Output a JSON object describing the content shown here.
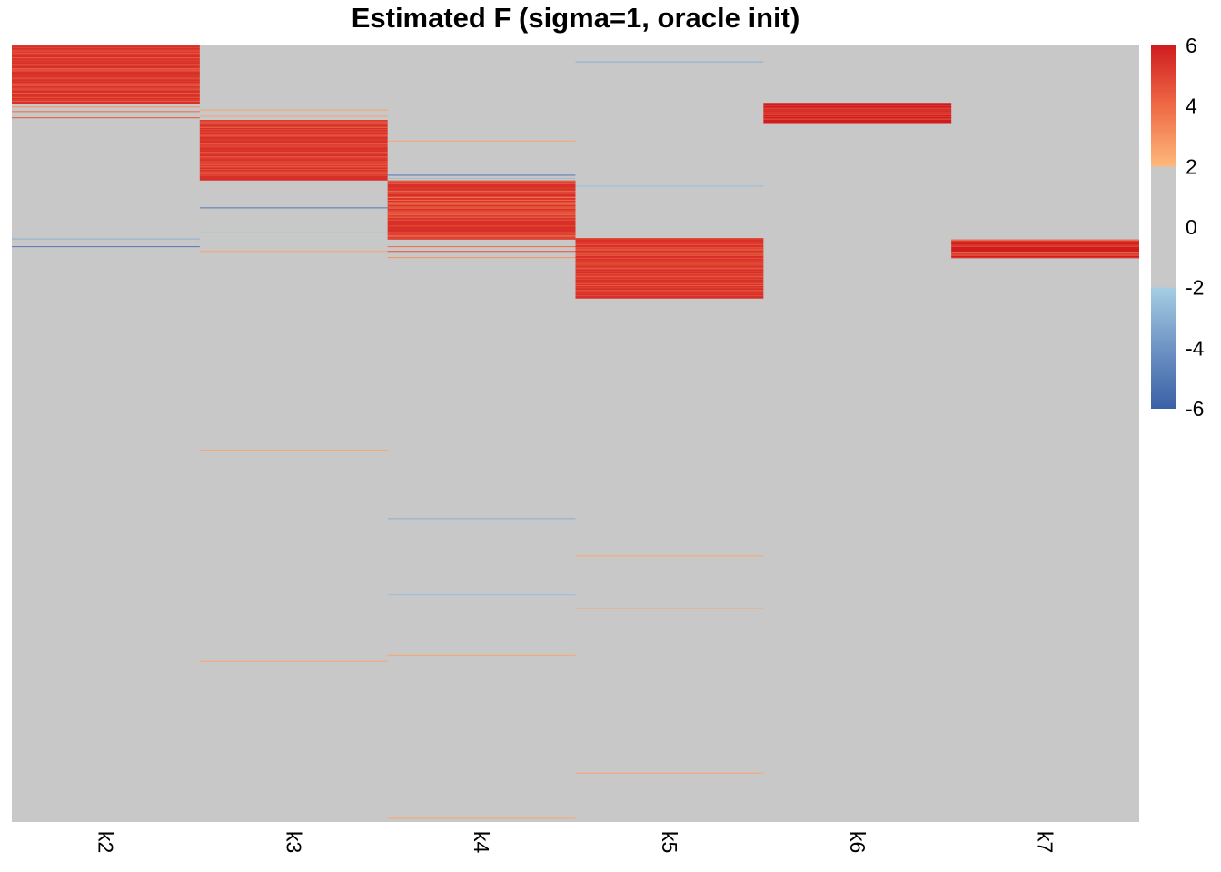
{
  "chart_data": {
    "type": "heatmap",
    "title": "Estimated F (sigma=1, oracle init)",
    "xlabel": "",
    "ylabel": "",
    "columns": [
      "k2",
      "k3",
      "k4",
      "k5",
      "k6",
      "k7"
    ],
    "n_rows": 500,
    "background_value": 0,
    "background_color": "#c8c8c8",
    "color_scale": {
      "min": -6,
      "max": 6,
      "ticks": [
        6,
        4,
        2,
        0,
        -2,
        -4,
        -6
      ],
      "stops": [
        {
          "value": -6,
          "color": "#3a61a6"
        },
        {
          "value": -4,
          "color": "#6e93c4"
        },
        {
          "value": -2,
          "color": "#a6cee3"
        },
        {
          "value": 2,
          "color": "#fdb97b"
        },
        {
          "value": 4,
          "color": "#ef6a46"
        },
        {
          "value": 6,
          "color": "#d01c1f"
        }
      ],
      "neutral_range": [
        -2,
        2
      ]
    },
    "blocks": [
      {
        "column": "k2",
        "rows": [
          1,
          38
        ],
        "value": 5.5
      },
      {
        "column": "k3",
        "rows": [
          49,
          87
        ],
        "value": 5.5
      },
      {
        "column": "k4",
        "rows": [
          88,
          125
        ],
        "value": 5.5
      },
      {
        "column": "k5",
        "rows": [
          125,
          163
        ],
        "value": 5.5
      },
      {
        "column": "k6",
        "rows": [
          38,
          50
        ],
        "value": 6
      },
      {
        "column": "k7",
        "rows": [
          126,
          137
        ],
        "value": 6
      }
    ],
    "isolated_cells": [
      {
        "column": "k2",
        "row": 40,
        "value": 3
      },
      {
        "column": "k2",
        "row": 43,
        "value": 4
      },
      {
        "column": "k2",
        "row": 47,
        "value": 4.5
      },
      {
        "column": "k2",
        "row": 125,
        "value": -3
      },
      {
        "column": "k2",
        "row": 130,
        "value": -5
      },
      {
        "column": "k3",
        "row": 42,
        "value": 2.5
      },
      {
        "column": "k3",
        "row": 46,
        "value": 2.5
      },
      {
        "column": "k3",
        "row": 105,
        "value": -5
      },
      {
        "column": "k3",
        "row": 121,
        "value": -2.5
      },
      {
        "column": "k3",
        "row": 133,
        "value": 2.5
      },
      {
        "column": "k3",
        "row": 261,
        "value": 2.5
      },
      {
        "column": "k3",
        "row": 397,
        "value": 2.5
      },
      {
        "column": "k4",
        "row": 62,
        "value": 2.5
      },
      {
        "column": "k4",
        "row": 84,
        "value": -5
      },
      {
        "column": "k4",
        "row": 86,
        "value": -2.5
      },
      {
        "column": "k4",
        "row": 130,
        "value": 4
      },
      {
        "column": "k4",
        "row": 133,
        "value": 4.5
      },
      {
        "column": "k4",
        "row": 137,
        "value": 3
      },
      {
        "column": "k4",
        "row": 305,
        "value": -3
      },
      {
        "column": "k4",
        "row": 354,
        "value": -2.5
      },
      {
        "column": "k4",
        "row": 393,
        "value": 2.5
      },
      {
        "column": "k4",
        "row": 498,
        "value": 2.5
      },
      {
        "column": "k5",
        "row": 11,
        "value": -3
      },
      {
        "column": "k5",
        "row": 91,
        "value": -2.5
      },
      {
        "column": "k5",
        "row": 329,
        "value": 2.5
      },
      {
        "column": "k5",
        "row": 363,
        "value": 2.5
      },
      {
        "column": "k5",
        "row": 469,
        "value": 2.5
      }
    ]
  }
}
